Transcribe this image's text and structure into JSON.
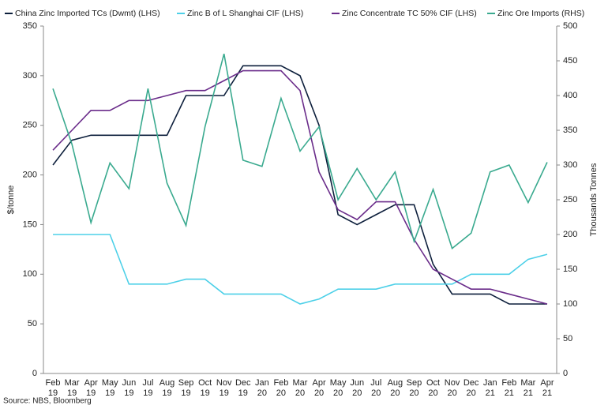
{
  "chart_data": {
    "type": "line",
    "ylabel": "$/tonne",
    "y2label": "Thousands Tonnes",
    "source": "Source: NBS, Bloomberg",
    "legend": "top",
    "categories": [
      "Feb 19",
      "Mar 19",
      "Apr 19",
      "May 19",
      "Jun 19",
      "Jul 19",
      "Aug 19",
      "Sep 19",
      "Oct 19",
      "Nov 19",
      "Dec 19",
      "Jan 20",
      "Feb 20",
      "Mar 20",
      "Apr 20",
      "May 20",
      "Jun 20",
      "Jul 20",
      "Aug 20",
      "Sep 20",
      "Oct 20",
      "Nov 20",
      "Dec 20",
      "Jan 21",
      "Feb 21",
      "Mar 21",
      "Apr 21"
    ],
    "ylim": [
      0,
      350
    ],
    "yticks": [
      0,
      50,
      100,
      150,
      200,
      250,
      300,
      350
    ],
    "y2lim": [
      0,
      500
    ],
    "y2ticks": [
      0,
      50,
      100,
      150,
      200,
      250,
      300,
      350,
      400,
      450,
      500
    ],
    "series": [
      {
        "name": "China Zinc Imported TCs (Dwmt) (LHS)",
        "color": "#0d1f3c",
        "values": [
          210,
          235,
          240,
          240,
          240,
          240,
          240,
          280,
          280,
          280,
          310,
          310,
          310,
          300,
          250,
          160,
          150,
          160,
          170,
          170,
          110,
          80,
          80,
          80,
          70,
          70,
          70
        ]
      },
      {
        "name": "Zinc B of L Shanghai CIF (LHS)",
        "color": "#4dd0e8",
        "values": [
          140,
          140,
          140,
          140,
          90,
          90,
          90,
          95,
          95,
          80,
          80,
          80,
          80,
          70,
          75,
          85,
          85,
          85,
          90,
          90,
          90,
          90,
          100,
          100,
          100,
          115,
          120
        ]
      },
      {
        "name": "Zinc Concentrate TC 50% CIF (LHS)",
        "color": "#6a2c8a",
        "values": [
          225,
          245,
          265,
          265,
          275,
          275,
          280,
          285,
          285,
          295,
          305,
          305,
          305,
          285,
          203,
          165,
          155,
          173,
          173,
          135,
          105,
          95,
          85,
          85,
          80,
          75,
          70
        ]
      },
      {
        "name": "Zinc Ore Imports (RHS)",
        "color": "#3aaa8f",
        "axis": "y2",
        "values": [
          410,
          330,
          217,
          303,
          266,
          410,
          274,
          213,
          355,
          460,
          307,
          298,
          396,
          320,
          355,
          250,
          295,
          250,
          290,
          190,
          265,
          180,
          202,
          290,
          300,
          246,
          304
        ]
      }
    ]
  }
}
